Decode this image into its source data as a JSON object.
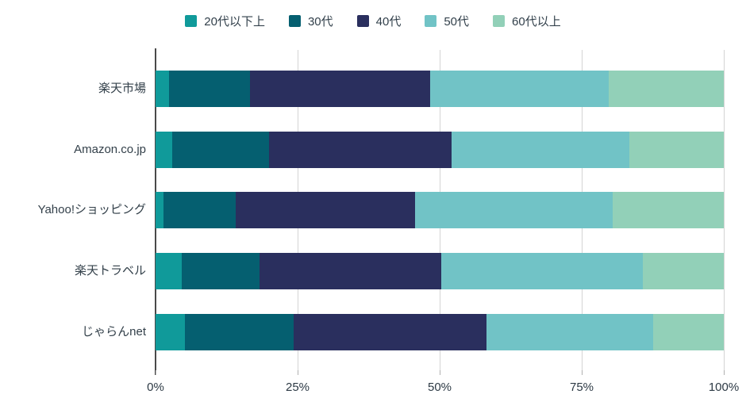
{
  "chart_data": {
    "type": "bar",
    "orientation": "horizontal",
    "stacked": true,
    "title": "",
    "categories": [
      "楽天市場",
      "Amazon.co.jp",
      "Yahoo!ショッピング",
      "楽天トラベル",
      "じゃらんnet"
    ],
    "series": [
      {
        "name": "20代以下上",
        "color": "#109a9a",
        "values": [
          2.4,
          2.9,
          1.4,
          4.6,
          5.2
        ]
      },
      {
        "name": "30代",
        "color": "#055f70",
        "values": [
          14.2,
          17.1,
          12.7,
          13.7,
          19.1
        ]
      },
      {
        "name": "40代",
        "color": "#2a2f5e",
        "values": [
          31.7,
          32.1,
          31.6,
          32.0,
          33.9
        ]
      },
      {
        "name": "50代",
        "color": "#71c3c6",
        "values": [
          31.4,
          31.3,
          34.7,
          35.5,
          29.4
        ]
      },
      {
        "name": "60代以上",
        "color": "#92d0b8",
        "values": [
          20.3,
          16.6,
          19.6,
          14.2,
          12.4
        ]
      }
    ],
    "x_axis": {
      "ticks": [
        {
          "value": 0,
          "label": "0%"
        },
        {
          "value": 25,
          "label": "25%"
        },
        {
          "value": 50,
          "label": "50%"
        },
        {
          "value": 75,
          "label": "75%"
        },
        {
          "value": 100,
          "label": "100%"
        }
      ],
      "range": [
        0,
        100
      ]
    },
    "legend_position": "top",
    "grid": true
  },
  "colors": {
    "grid_line": "#d4d4d4",
    "axis_line": "#4a4a4a",
    "text": "#32404b",
    "background": "#ffffff"
  }
}
